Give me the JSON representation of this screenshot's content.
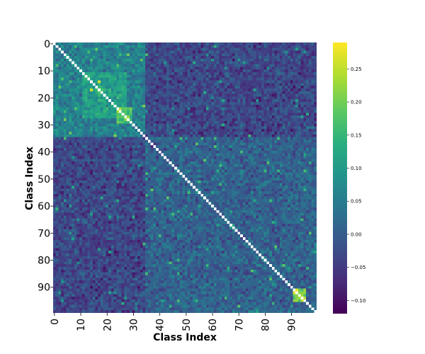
{
  "chart_data": {
    "type": "heatmap",
    "title": "",
    "xlabel": "Class Index",
    "ylabel": "Class Index",
    "n": 100,
    "x_ticks": [
      0,
      10,
      20,
      30,
      40,
      50,
      60,
      70,
      80,
      90
    ],
    "y_ticks": [
      0,
      10,
      20,
      30,
      40,
      50,
      60,
      70,
      80,
      90
    ],
    "colormap": "viridis",
    "vmin": -0.12,
    "vmax": 0.29,
    "colorbar_ticks": [
      "0.25",
      "0.20",
      "0.15",
      "0.10",
      "0.05",
      "0.00",
      "−0.05",
      "−0.10"
    ],
    "colorbar_tick_values": [
      0.25,
      0.2,
      0.15,
      0.1,
      0.05,
      0.0,
      -0.05,
      -0.1
    ],
    "diagonal": "masked (white)",
    "blocks": [
      {
        "range": [
          0,
          34
        ],
        "mean": 0.06
      },
      {
        "range": [
          11,
          27
        ],
        "mean": 0.11
      },
      {
        "range": [
          24,
          29
        ],
        "mean": 0.18
      },
      {
        "range": [
          91,
          95
        ],
        "mean": 0.2
      }
    ],
    "off_block_mean": -0.03,
    "background_mean": 0.01
  }
}
